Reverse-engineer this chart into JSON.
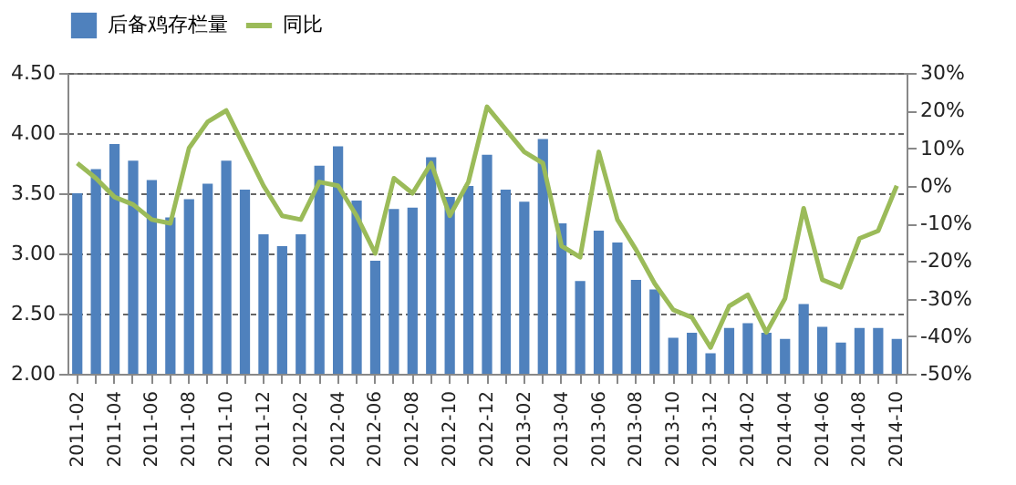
{
  "chart_data": {
    "type": "bar",
    "categories": [
      "2011-02",
      null,
      "2011-04",
      null,
      "2011-06",
      null,
      "2011-08",
      null,
      "2011-10",
      null,
      "2011-12",
      null,
      "2012-02",
      null,
      "2012-04",
      null,
      "2012-06",
      null,
      "2012-08",
      null,
      "2012-10",
      null,
      "2012-12",
      null,
      "2013-02",
      null,
      "2013-04",
      null,
      "2013-06",
      null,
      "2013-08",
      null,
      "2013-10",
      null,
      "2013-12",
      null,
      "2014-02",
      null,
      "2014-04",
      null,
      "2014-06",
      null,
      "2014-08",
      null,
      "2014-10"
    ],
    "series": [
      {
        "name": "后备鸡存栏量",
        "color": "#4f81bd",
        "values": [
          3.5,
          3.7,
          3.91,
          3.77,
          3.61,
          3.3,
          3.45,
          3.58,
          3.77,
          3.53,
          3.16,
          3.06,
          3.16,
          3.73,
          3.89,
          3.44,
          2.94,
          3.37,
          3.38,
          3.8,
          3.47,
          3.56,
          3.82,
          3.53,
          3.43,
          3.95,
          3.25,
          2.77,
          3.19,
          3.09,
          2.78,
          2.7,
          2.3,
          2.34,
          2.17,
          2.38,
          2.42,
          2.34,
          2.29,
          2.58,
          2.39,
          2.26,
          2.38,
          2.38,
          2.29
        ]
      },
      {
        "name": "同比",
        "type": "line",
        "axis": "y2",
        "color": "#9bbb59",
        "values": [
          6,
          2,
          -3,
          -5,
          -9,
          -10,
          10,
          17,
          20,
          10,
          0,
          -8,
          -9,
          1,
          0,
          -8,
          -18,
          2,
          -2,
          6,
          -8,
          1,
          21,
          15,
          9,
          6,
          -16,
          -19,
          9,
          -9,
          -17,
          -26,
          -33,
          -35,
          -43,
          -32,
          -29,
          -39,
          -30,
          -6,
          -25,
          -27,
          -14,
          -12,
          0
        ]
      }
    ],
    "ylim": [
      2.0,
      4.5
    ],
    "yticks": [
      {
        "value": 2.0,
        "label": "2.00"
      },
      {
        "value": 2.5,
        "label": "2.50"
      },
      {
        "value": 3.0,
        "label": "3.00"
      },
      {
        "value": 3.5,
        "label": "3.50"
      },
      {
        "value": 4.0,
        "label": "4.00"
      },
      {
        "value": 4.5,
        "label": "4.50"
      }
    ],
    "y2lim": [
      -50,
      30
    ],
    "y2ticks": [
      {
        "value": -50,
        "label": "-50%"
      },
      {
        "value": -40,
        "label": "-40%"
      },
      {
        "value": -30,
        "label": "-30%"
      },
      {
        "value": -20,
        "label": "-20%"
      },
      {
        "value": -10,
        "label": "-10%"
      },
      {
        "value": 0,
        "label": "0%"
      },
      {
        "value": 10,
        "label": "10%"
      },
      {
        "value": 20,
        "label": "20%"
      },
      {
        "value": 30,
        "label": "30%"
      }
    ],
    "grid": "y",
    "legend": "top",
    "marker": "none",
    "line_style": "solid"
  }
}
